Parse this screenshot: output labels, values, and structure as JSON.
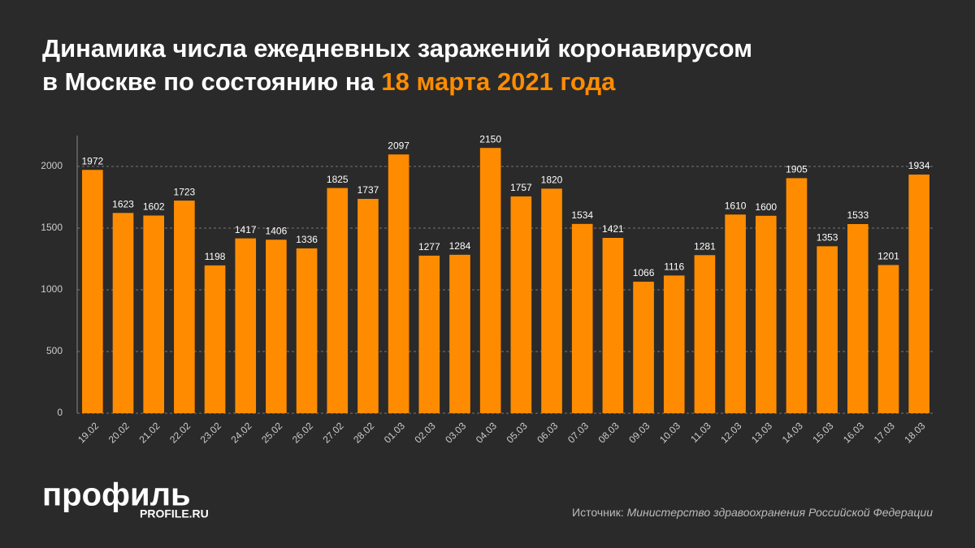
{
  "chart_data": {
    "type": "bar",
    "title_line1": "Динамика числа ежедневных заражений коронавирусом",
    "title_line2": "в Москве по состоянию на",
    "title_highlight": "18 марта 2021 года",
    "categories": [
      "19.02",
      "20.02",
      "21.02",
      "22.02",
      "23.02",
      "24.02",
      "25.02",
      "26.02",
      "27.02",
      "28.02",
      "01.03",
      "02.03",
      "03.03",
      "04.03",
      "05.03",
      "06.03",
      "07.03",
      "08.03",
      "09.03",
      "10.03",
      "11.03",
      "12.03",
      "13.03",
      "14.03",
      "15.03",
      "16.03",
      "17.03",
      "18.03"
    ],
    "values": [
      1972,
      1623,
      1602,
      1723,
      1198,
      1417,
      1406,
      1336,
      1825,
      1737,
      2097,
      1277,
      1284,
      2150,
      1757,
      1820,
      1534,
      1421,
      1066,
      1116,
      1281,
      1610,
      1600,
      1905,
      1353,
      1533,
      1201,
      1934
    ],
    "color": "#ff8c00",
    "ylim": [
      0,
      2250
    ],
    "yticks": [
      0,
      500,
      1000,
      1500,
      2000
    ],
    "grid": true,
    "source_label": "Источник:",
    "source": "Министерство здравоохранения Российской Федерации",
    "logo": "профиль",
    "logo_url": "PROFILE.RU"
  }
}
